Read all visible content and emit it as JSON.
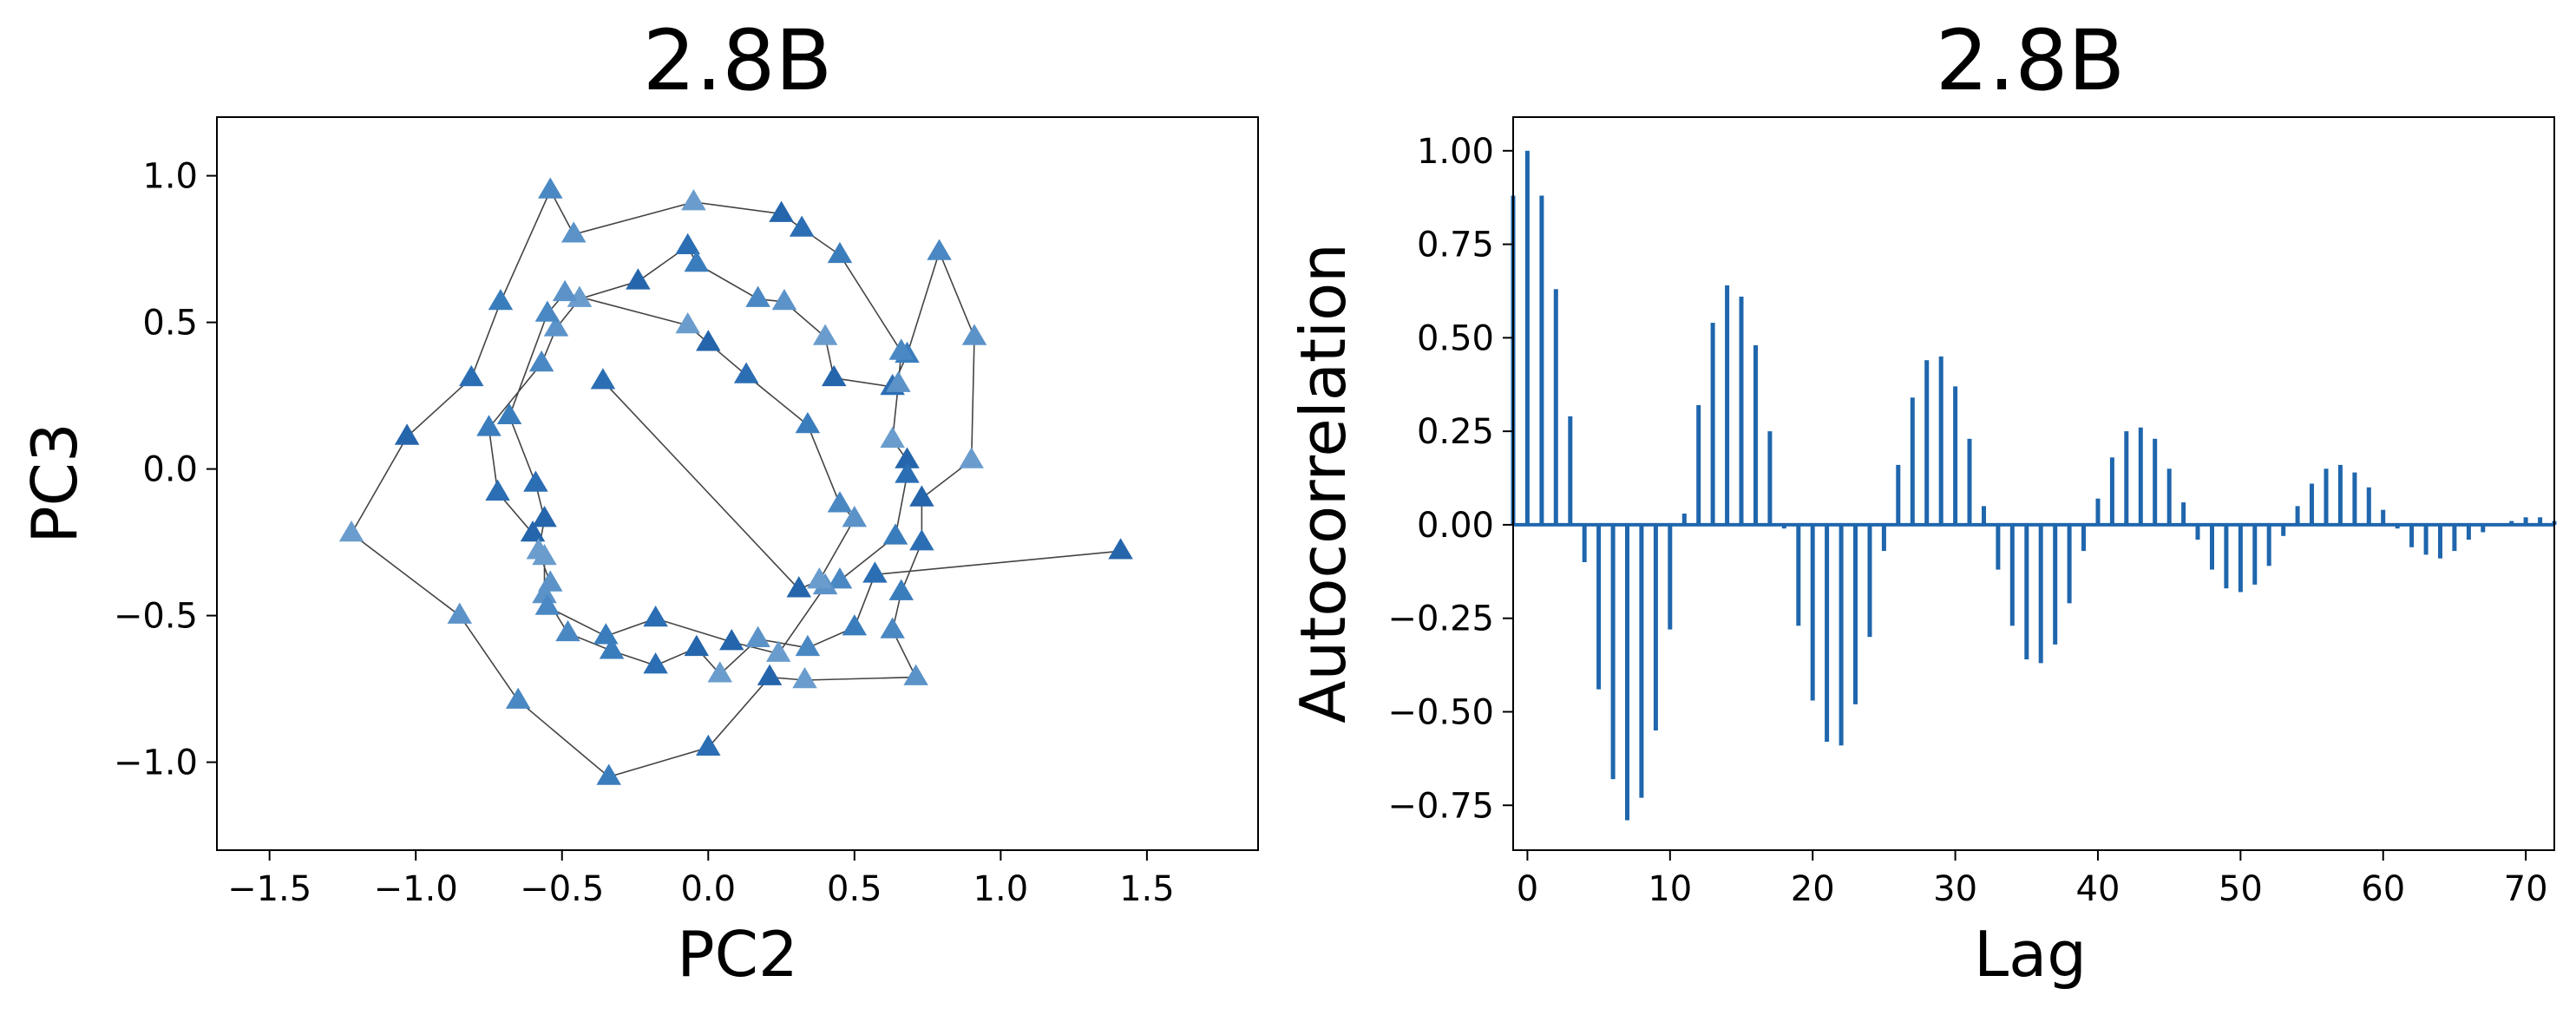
{
  "chart_data": [
    {
      "type": "scatter",
      "connected": true,
      "marker": "triangle",
      "title": "2.8B",
      "xlabel": "PC2",
      "ylabel": "PC3",
      "xlim": [
        -1.68,
        1.88
      ],
      "ylim": [
        -1.3,
        1.2
      ],
      "xticks": [
        -1.5,
        -1.0,
        -0.5,
        0.0,
        0.5,
        1.0,
        1.5
      ],
      "xtick_labels": [
        "−1.5",
        "−1.0",
        "−0.5",
        "0.0",
        "0.5",
        "1.0",
        "1.5"
      ],
      "yticks": [
        -1.0,
        -0.5,
        0.0,
        0.5,
        1.0
      ],
      "ytick_labels": [
        "−1.0",
        "−0.5",
        "0.0",
        "0.5",
        "1.0"
      ],
      "grid": false,
      "line_color": "#444444",
      "marker_colors": [
        "#2565ab",
        "#2b6eb4",
        "#3a7dbd",
        "#4a88c3",
        "#5b93c9",
        "#6a9dcd"
      ],
      "points": [
        {
          "x": 1.41,
          "y": -0.28
        },
        {
          "x": 0.57,
          "y": -0.36
        },
        {
          "x": 0.5,
          "y": -0.54
        },
        {
          "x": 0.34,
          "y": -0.61
        },
        {
          "x": 0.17,
          "y": -0.58
        },
        {
          "x": 0.04,
          "y": -0.7
        },
        {
          "x": -0.04,
          "y": -0.61
        },
        {
          "x": -0.18,
          "y": -0.67
        },
        {
          "x": -0.33,
          "y": -0.62
        },
        {
          "x": -0.48,
          "y": -0.56
        },
        {
          "x": -0.56,
          "y": -0.43
        },
        {
          "x": -0.56,
          "y": -0.3
        },
        {
          "x": -0.6,
          "y": -0.22
        },
        {
          "x": -0.72,
          "y": -0.08
        },
        {
          "x": -0.75,
          "y": 0.14
        },
        {
          "x": -0.57,
          "y": 0.36
        },
        {
          "x": -0.52,
          "y": 0.48
        },
        {
          "x": -0.44,
          "y": 0.58
        },
        {
          "x": -0.24,
          "y": 0.64
        },
        {
          "x": -0.07,
          "y": 0.76
        },
        {
          "x": -0.04,
          "y": 0.7
        },
        {
          "x": 0.17,
          "y": 0.58
        },
        {
          "x": 0.26,
          "y": 0.57
        },
        {
          "x": 0.4,
          "y": 0.45
        },
        {
          "x": 0.43,
          "y": 0.31
        },
        {
          "x": 0.63,
          "y": 0.28
        },
        {
          "x": 0.68,
          "y": 0.39
        },
        {
          "x": 0.79,
          "y": 0.74
        },
        {
          "x": 0.91,
          "y": 0.45
        },
        {
          "x": 0.9,
          "y": 0.03
        },
        {
          "x": 0.73,
          "y": -0.1
        },
        {
          "x": 0.73,
          "y": -0.25
        },
        {
          "x": 0.66,
          "y": -0.42
        },
        {
          "x": 0.63,
          "y": -0.55
        },
        {
          "x": 0.71,
          "y": -0.71
        },
        {
          "x": 0.33,
          "y": -0.72
        },
        {
          "x": 0.21,
          "y": -0.71
        },
        {
          "x": 0.0,
          "y": -0.95
        },
        {
          "x": -0.34,
          "y": -1.05
        },
        {
          "x": -0.65,
          "y": -0.79
        },
        {
          "x": -0.85,
          "y": -0.5
        },
        {
          "x": -1.22,
          "y": -0.22
        },
        {
          "x": -1.03,
          "y": 0.11
        },
        {
          "x": -0.81,
          "y": 0.31
        },
        {
          "x": -0.71,
          "y": 0.57
        },
        {
          "x": -0.54,
          "y": 0.95
        },
        {
          "x": -0.46,
          "y": 0.8
        },
        {
          "x": -0.05,
          "y": 0.91
        },
        {
          "x": 0.25,
          "y": 0.87
        },
        {
          "x": 0.32,
          "y": 0.82
        },
        {
          "x": 0.45,
          "y": 0.73
        },
        {
          "x": 0.66,
          "y": 0.4
        },
        {
          "x": 0.65,
          "y": 0.29
        },
        {
          "x": 0.63,
          "y": 0.1
        },
        {
          "x": 0.68,
          "y": 0.03
        },
        {
          "x": 0.68,
          "y": -0.02
        },
        {
          "x": 0.64,
          "y": -0.23
        },
        {
          "x": 0.45,
          "y": -0.38
        },
        {
          "x": 0.4,
          "y": -0.4
        },
        {
          "x": 0.24,
          "y": -0.63
        },
        {
          "x": 0.08,
          "y": -0.59
        },
        {
          "x": -0.18,
          "y": -0.51
        },
        {
          "x": -0.35,
          "y": -0.57
        },
        {
          "x": -0.55,
          "y": -0.47
        },
        {
          "x": -0.54,
          "y": -0.39
        },
        {
          "x": -0.58,
          "y": -0.28
        },
        {
          "x": -0.56,
          "y": -0.17
        },
        {
          "x": -0.59,
          "y": -0.05
        },
        {
          "x": -0.68,
          "y": 0.18
        },
        {
          "x": -0.55,
          "y": 0.53
        },
        {
          "x": -0.49,
          "y": 0.6
        },
        {
          "x": -0.07,
          "y": 0.49
        },
        {
          "x": 0.0,
          "y": 0.43
        },
        {
          "x": 0.13,
          "y": 0.32
        },
        {
          "x": 0.34,
          "y": 0.15
        },
        {
          "x": 0.45,
          "y": -0.12
        },
        {
          "x": 0.5,
          "y": -0.17
        },
        {
          "x": 0.38,
          "y": -0.38
        },
        {
          "x": 0.31,
          "y": -0.41
        },
        {
          "x": -0.36,
          "y": 0.3
        }
      ]
    },
    {
      "type": "bar",
      "title": "2.8B",
      "xlabel": "Lag",
      "ylabel": "Autocorrelation",
      "xlim": [
        -1,
        72
      ],
      "ylim": [
        -0.87,
        1.09
      ],
      "xticks": [
        0,
        10,
        20,
        30,
        40,
        50,
        60,
        70
      ],
      "xtick_labels": [
        "0",
        "10",
        "20",
        "30",
        "40",
        "50",
        "60",
        "70"
      ],
      "yticks": [
        -0.75,
        -0.5,
        -0.25,
        0.0,
        0.25,
        0.5,
        0.75,
        1.0
      ],
      "ytick_labels": [
        "−0.75",
        "−0.50",
        "−0.25",
        "0.00",
        "0.25",
        "0.50",
        "0.75",
        "1.00"
      ],
      "grid": false,
      "bar_color": "#1f66ad",
      "lags": [
        -1,
        0,
        1,
        2,
        3,
        4,
        5,
        6,
        7,
        8,
        9,
        10,
        11,
        12,
        13,
        14,
        15,
        16,
        17,
        18,
        19,
        20,
        21,
        22,
        23,
        24,
        25,
        26,
        27,
        28,
        29,
        30,
        31,
        32,
        33,
        34,
        35,
        36,
        37,
        38,
        39,
        40,
        41,
        42,
        43,
        44,
        45,
        46,
        47,
        48,
        49,
        50,
        51,
        52,
        53,
        54,
        55,
        56,
        57,
        58,
        59,
        60,
        61,
        62,
        63,
        64,
        65,
        66,
        67,
        68,
        69,
        70,
        71,
        72
      ],
      "values": [
        0.88,
        1.0,
        0.88,
        0.63,
        0.29,
        -0.1,
        -0.44,
        -0.68,
        -0.79,
        -0.73,
        -0.55,
        -0.28,
        0.03,
        0.32,
        0.54,
        0.64,
        0.61,
        0.48,
        0.25,
        -0.01,
        -0.27,
        -0.47,
        -0.58,
        -0.59,
        -0.48,
        -0.3,
        -0.07,
        0.16,
        0.34,
        0.44,
        0.45,
        0.37,
        0.23,
        0.05,
        -0.12,
        -0.27,
        -0.36,
        -0.37,
        -0.32,
        -0.21,
        -0.07,
        0.07,
        0.18,
        0.25,
        0.26,
        0.23,
        0.15,
        0.06,
        -0.04,
        -0.12,
        -0.17,
        -0.18,
        -0.16,
        -0.11,
        -0.03,
        0.05,
        0.11,
        0.15,
        0.16,
        0.14,
        0.1,
        0.04,
        -0.01,
        -0.06,
        -0.08,
        -0.09,
        -0.07,
        -0.04,
        -0.02,
        0.0,
        0.01,
        0.02,
        0.02,
        0.01
      ]
    }
  ]
}
